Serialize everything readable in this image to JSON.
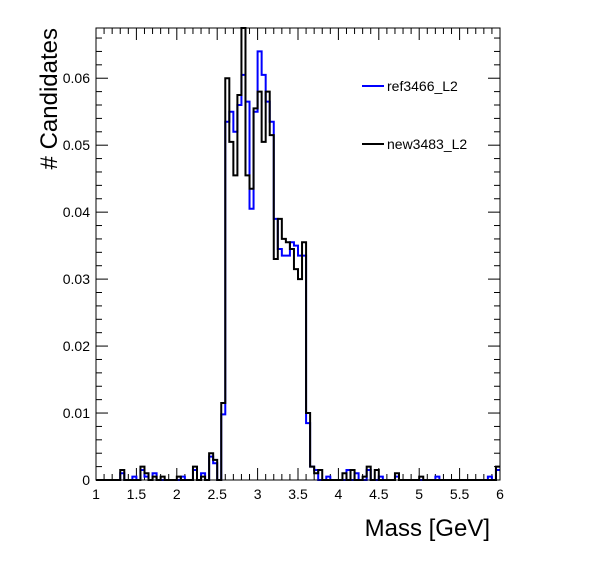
{
  "chart_data": {
    "type": "histogram-step",
    "xlabel": "Mass [GeV]",
    "ylabel": "# Candidates",
    "xlim": [
      1,
      6
    ],
    "ylim": [
      0,
      0.0675
    ],
    "bin_width": 0.05,
    "x_major_ticks": [
      1,
      1.5,
      2,
      2.5,
      3,
      3.5,
      4,
      4.5,
      5,
      5.5,
      6
    ],
    "x_tick_labels": [
      "1",
      "1.5",
      "2",
      "2.5",
      "3",
      "3.5",
      "4",
      "4.5",
      "5",
      "5.5",
      "6"
    ],
    "y_major_ticks": [
      0,
      0.01,
      0.02,
      0.03,
      0.04,
      0.05,
      0.06
    ],
    "y_tick_labels": [
      "0",
      "0.01",
      "0.02",
      "0.03",
      "0.04",
      "0.05",
      "0.06"
    ],
    "legend_position": "top-right",
    "series": [
      {
        "name": "ref3466_L2",
        "color": "#0000ff",
        "bins": [
          [
            1.3,
            0.001
          ],
          [
            1.45,
            0.0005
          ],
          [
            1.55,
            0.0015
          ],
          [
            1.6,
            0.0005
          ],
          [
            1.7,
            0.001
          ],
          [
            2.05,
            0.0005
          ],
          [
            2.2,
            0.0015
          ],
          [
            2.3,
            0.001
          ],
          [
            2.4,
            0.0035
          ],
          [
            2.45,
            0.0025
          ],
          [
            2.55,
            0.0098
          ],
          [
            2.6,
            0.0535
          ],
          [
            2.65,
            0.055
          ],
          [
            2.7,
            0.052
          ],
          [
            2.75,
            0.056
          ],
          [
            2.8,
            0.0605
          ],
          [
            2.85,
            0.0565
          ],
          [
            2.9,
            0.0405
          ],
          [
            2.95,
            0.055
          ],
          [
            3.0,
            0.064
          ],
          [
            3.05,
            0.0605
          ],
          [
            3.1,
            0.0565
          ],
          [
            3.15,
            0.0535
          ],
          [
            3.2,
            0.039
          ],
          [
            3.25,
            0.0345
          ],
          [
            3.3,
            0.0335
          ],
          [
            3.35,
            0.0335
          ],
          [
            3.4,
            0.0355
          ],
          [
            3.45,
            0.035
          ],
          [
            3.5,
            0.0335
          ],
          [
            3.55,
            0.0335
          ],
          [
            3.6,
            0.0085
          ],
          [
            3.65,
            0.002
          ],
          [
            3.7,
            0.0015
          ],
          [
            3.85,
            0.0005
          ],
          [
            4.1,
            0.0015
          ],
          [
            4.2,
            0.001
          ],
          [
            4.35,
            0.0015
          ],
          [
            4.5,
            0.0005
          ],
          [
            4.7,
            0.0005
          ],
          [
            5.2,
            0.0005
          ],
          [
            5.85,
            0.0005
          ],
          [
            5.95,
            0.0015
          ]
        ]
      },
      {
        "name": "new3483_L2",
        "color": "#000000",
        "bins": [
          [
            1.3,
            0.0015
          ],
          [
            1.55,
            0.002
          ],
          [
            1.6,
            0.001
          ],
          [
            1.7,
            0.0005
          ],
          [
            1.8,
            0.0005
          ],
          [
            2.0,
            0.0005
          ],
          [
            2.2,
            0.002
          ],
          [
            2.3,
            0.0005
          ],
          [
            2.4,
            0.004
          ],
          [
            2.45,
            0.003
          ],
          [
            2.55,
            0.0115
          ],
          [
            2.6,
            0.06
          ],
          [
            2.65,
            0.0505
          ],
          [
            2.7,
            0.0455
          ],
          [
            2.75,
            0.0575
          ],
          [
            2.8,
            0.0705
          ],
          [
            2.85,
            0.0455
          ],
          [
            2.9,
            0.0435
          ],
          [
            2.95,
            0.0555
          ],
          [
            3.0,
            0.058
          ],
          [
            3.05,
            0.0505
          ],
          [
            3.1,
            0.058
          ],
          [
            3.15,
            0.0515
          ],
          [
            3.2,
            0.033
          ],
          [
            3.25,
            0.039
          ],
          [
            3.3,
            0.036
          ],
          [
            3.35,
            0.0355
          ],
          [
            3.4,
            0.0345
          ],
          [
            3.45,
            0.0315
          ],
          [
            3.5,
            0.03
          ],
          [
            3.55,
            0.0355
          ],
          [
            3.6,
            0.01
          ],
          [
            3.65,
            0.002
          ],
          [
            3.7,
            0.001
          ],
          [
            3.75,
            0.0015
          ],
          [
            4.05,
            0.001
          ],
          [
            4.15,
            0.0015
          ],
          [
            4.3,
            0.0005
          ],
          [
            4.35,
            0.002
          ],
          [
            4.45,
            0.0015
          ],
          [
            4.7,
            0.001
          ],
          [
            5.0,
            0.0005
          ],
          [
            5.95,
            0.002
          ]
        ]
      }
    ]
  }
}
